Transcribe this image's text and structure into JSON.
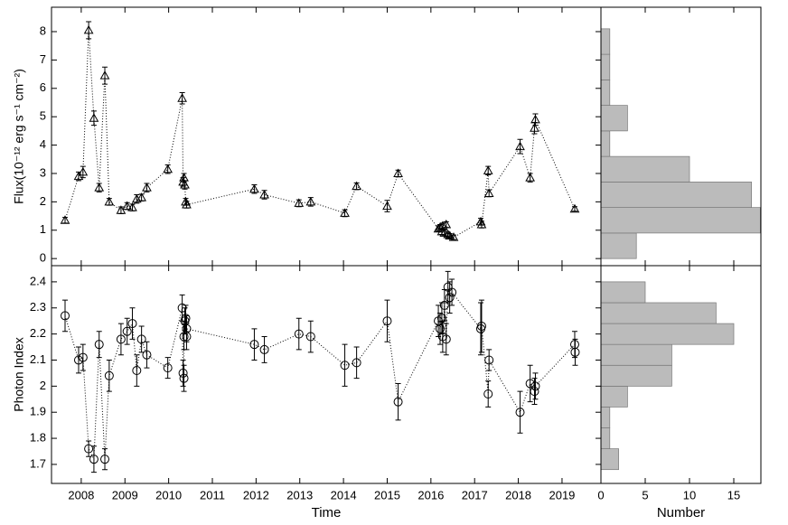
{
  "chart_data": [
    {
      "type": "errorbar",
      "marker": "triangle",
      "y_label": "Flux(10⁻¹² erg s⁻¹ cm⁻²)",
      "xtick_labels": false,
      "xlim": [
        2007.32,
        2019.89
      ],
      "ylim": [
        -0.25,
        8.86
      ],
      "xticks": [
        2008,
        2009,
        2010,
        2011,
        2012,
        2013,
        2014,
        2015,
        2016,
        2017,
        2018,
        2019
      ],
      "yticks": [
        0,
        1,
        2,
        3,
        4,
        5,
        6,
        7,
        8
      ],
      "x": [
        2007.63,
        2007.94,
        2008.04,
        2008.17,
        2008.29,
        2008.41,
        2008.54,
        2008.64,
        2008.91,
        2009.05,
        2009.17,
        2009.27,
        2009.38,
        2009.5,
        2009.98,
        2010.31,
        2010.33,
        2010.35,
        2010.37,
        2010.39,
        2010.41,
        2011.96,
        2012.19,
        2012.98,
        2013.25,
        2014.03,
        2014.3,
        2015.0,
        2015.25,
        2016.17,
        2016.21,
        2016.25,
        2016.27,
        2016.31,
        2016.35,
        2016.39,
        2016.43,
        2016.52,
        2017.14,
        2017.16,
        2017.31,
        2017.33,
        2018.04,
        2018.27,
        2018.37,
        2018.39,
        2019.29
      ],
      "values": [
        1.35,
        2.9,
        3.05,
        8.05,
        4.95,
        2.5,
        6.45,
        2.0,
        1.7,
        1.85,
        1.8,
        2.1,
        2.15,
        2.5,
        3.15,
        5.65,
        2.7,
        2.85,
        2.6,
        2.0,
        1.9,
        2.45,
        2.25,
        1.95,
        2.0,
        1.6,
        2.55,
        1.85,
        3.0,
        1.05,
        1.1,
        0.95,
        1.15,
        0.9,
        1.2,
        0.85,
        0.8,
        0.75,
        1.3,
        1.2,
        3.1,
        2.3,
        3.95,
        2.85,
        4.6,
        4.9,
        1.75
      ],
      "errors": [
        0.1,
        0.15,
        0.2,
        0.3,
        0.25,
        0.15,
        0.3,
        0.12,
        0.12,
        0.12,
        0.12,
        0.15,
        0.12,
        0.15,
        0.15,
        0.2,
        0.15,
        0.15,
        0.15,
        0.12,
        0.12,
        0.15,
        0.15,
        0.12,
        0.15,
        0.12,
        0.12,
        0.2,
        0.12,
        0.1,
        0.1,
        0.1,
        0.1,
        0.1,
        0.1,
        0.08,
        0.08,
        0.08,
        0.12,
        0.12,
        0.15,
        0.12,
        0.25,
        0.15,
        0.2,
        0.2,
        0.08
      ]
    },
    {
      "type": "errorbar",
      "marker": "circle",
      "x_label": "Time",
      "y_label": "Photon Index",
      "xtick_labels": true,
      "xlim": [
        2007.32,
        2019.89
      ],
      "ylim": [
        1.627,
        2.462
      ],
      "xticks": [
        2008,
        2009,
        2010,
        2011,
        2012,
        2013,
        2014,
        2015,
        2016,
        2017,
        2018,
        2019
      ],
      "yticks": [
        1.7,
        1.8,
        1.9,
        2,
        2.1,
        2.2,
        2.3,
        2.4
      ],
      "x": [
        2007.63,
        2007.94,
        2008.04,
        2008.17,
        2008.29,
        2008.41,
        2008.54,
        2008.64,
        2008.91,
        2009.05,
        2009.17,
        2009.27,
        2009.38,
        2009.5,
        2009.98,
        2010.31,
        2010.33,
        2010.35,
        2010.35,
        2010.37,
        2010.39,
        2010.41,
        2010.41,
        2011.96,
        2012.19,
        2012.98,
        2013.25,
        2014.03,
        2014.3,
        2015.0,
        2015.25,
        2016.17,
        2016.21,
        2016.25,
        2016.27,
        2016.31,
        2016.35,
        2016.39,
        2016.43,
        2016.48,
        2017.14,
        2017.16,
        2017.31,
        2017.33,
        2018.04,
        2018.27,
        2018.37,
        2018.39,
        2019.29,
        2019.3
      ],
      "values": [
        2.27,
        2.1,
        2.11,
        1.76,
        1.72,
        2.16,
        1.72,
        2.04,
        2.18,
        2.21,
        2.24,
        2.06,
        2.18,
        2.12,
        2.07,
        2.3,
        2.05,
        2.03,
        2.19,
        2.25,
        2.26,
        2.19,
        2.22,
        2.16,
        2.14,
        2.2,
        2.19,
        2.08,
        2.09,
        2.25,
        1.94,
        2.25,
        2.22,
        2.26,
        2.19,
        2.31,
        2.18,
        2.38,
        2.34,
        2.36,
        2.22,
        2.23,
        1.97,
        2.1,
        1.9,
        2.01,
        1.98,
        2.0,
        2.16,
        2.13
      ],
      "errors": [
        0.06,
        0.05,
        0.05,
        0.03,
        0.05,
        0.05,
        0.04,
        0.06,
        0.06,
        0.05,
        0.06,
        0.06,
        0.05,
        0.05,
        0.04,
        0.05,
        0.05,
        0.05,
        0.05,
        0.05,
        0.05,
        0.05,
        0.05,
        0.06,
        0.05,
        0.06,
        0.06,
        0.08,
        0.06,
        0.08,
        0.07,
        0.06,
        0.06,
        0.06,
        0.06,
        0.06,
        0.06,
        0.06,
        0.06,
        0.05,
        0.1,
        0.1,
        0.05,
        0.04,
        0.08,
        0.07,
        0.05,
        0.05,
        0.05,
        0.05
      ]
    },
    {
      "type": "histogram",
      "orientation": "horizontal",
      "color": "#bbbbbb",
      "xtick_labels": false,
      "xlim": [
        0,
        18.06
      ],
      "ylim": [
        -0.25,
        8.86
      ],
      "xticks": [
        0,
        5,
        10,
        15
      ],
      "bins": [
        0,
        0.9,
        1.8,
        2.7,
        3.6,
        4.5,
        5.4,
        6.3,
        7.2,
        8.1
      ],
      "counts": [
        4,
        18,
        17,
        10,
        1,
        3,
        1,
        1,
        1
      ]
    },
    {
      "type": "histogram",
      "orientation": "horizontal",
      "color": "#bbbbbb",
      "x_label": "Number",
      "xtick_labels": true,
      "xlim": [
        0,
        18.06
      ],
      "ylim": [
        1.627,
        2.462
      ],
      "xticks": [
        0,
        5,
        10,
        15
      ],
      "bins": [
        1.68,
        1.76,
        1.84,
        1.92,
        2.0,
        2.08,
        2.16,
        2.24,
        2.32,
        2.4
      ],
      "counts": [
        2,
        1,
        1,
        3,
        8,
        8,
        15,
        13,
        5
      ]
    }
  ]
}
